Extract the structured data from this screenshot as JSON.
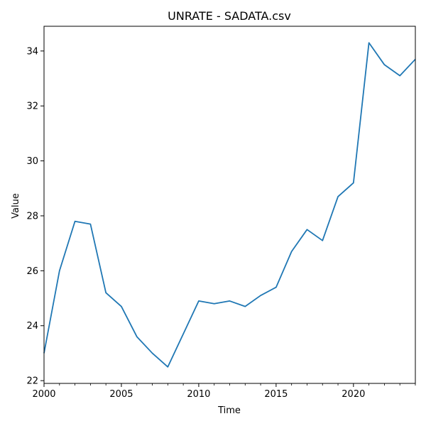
{
  "chart_data": {
    "type": "line",
    "title": "UNRATE - SADATA.csv",
    "xlabel": "Time",
    "ylabel": "Value",
    "xlim": [
      2000,
      2024
    ],
    "ylim": [
      21.9,
      34.9
    ],
    "x_ticks": [
      2000,
      2005,
      2010,
      2015,
      2020
    ],
    "x_tick_labels": [
      "2000",
      "2005",
      "2010",
      "2015",
      "2020"
    ],
    "x_minor_ticks": [
      2001,
      2002,
      2003,
      2004,
      2006,
      2007,
      2008,
      2009,
      2011,
      2012,
      2013,
      2014,
      2016,
      2017,
      2018,
      2019,
      2021,
      2022,
      2023,
      2024
    ],
    "y_ticks": [
      22,
      24,
      26,
      28,
      30,
      32,
      34
    ],
    "y_tick_labels": [
      "22",
      "24",
      "26",
      "28",
      "30",
      "32",
      "34"
    ],
    "grid": false,
    "series": [
      {
        "color": "#1f77b4",
        "x": [
          2000,
          2001,
          2002,
          2003,
          2004,
          2005,
          2006,
          2007,
          2008,
          2009,
          2010,
          2011,
          2012,
          2013,
          2014,
          2015,
          2016,
          2017,
          2018,
          2019,
          2020,
          2021,
          2022,
          2023,
          2024
        ],
        "y": [
          23.0,
          26.0,
          27.8,
          27.7,
          25.2,
          24.7,
          23.6,
          23.0,
          22.5,
          23.7,
          24.9,
          24.8,
          24.9,
          24.7,
          25.1,
          25.4,
          26.7,
          27.5,
          27.1,
          28.7,
          29.2,
          34.3,
          33.5,
          33.1,
          33.7
        ]
      }
    ]
  }
}
